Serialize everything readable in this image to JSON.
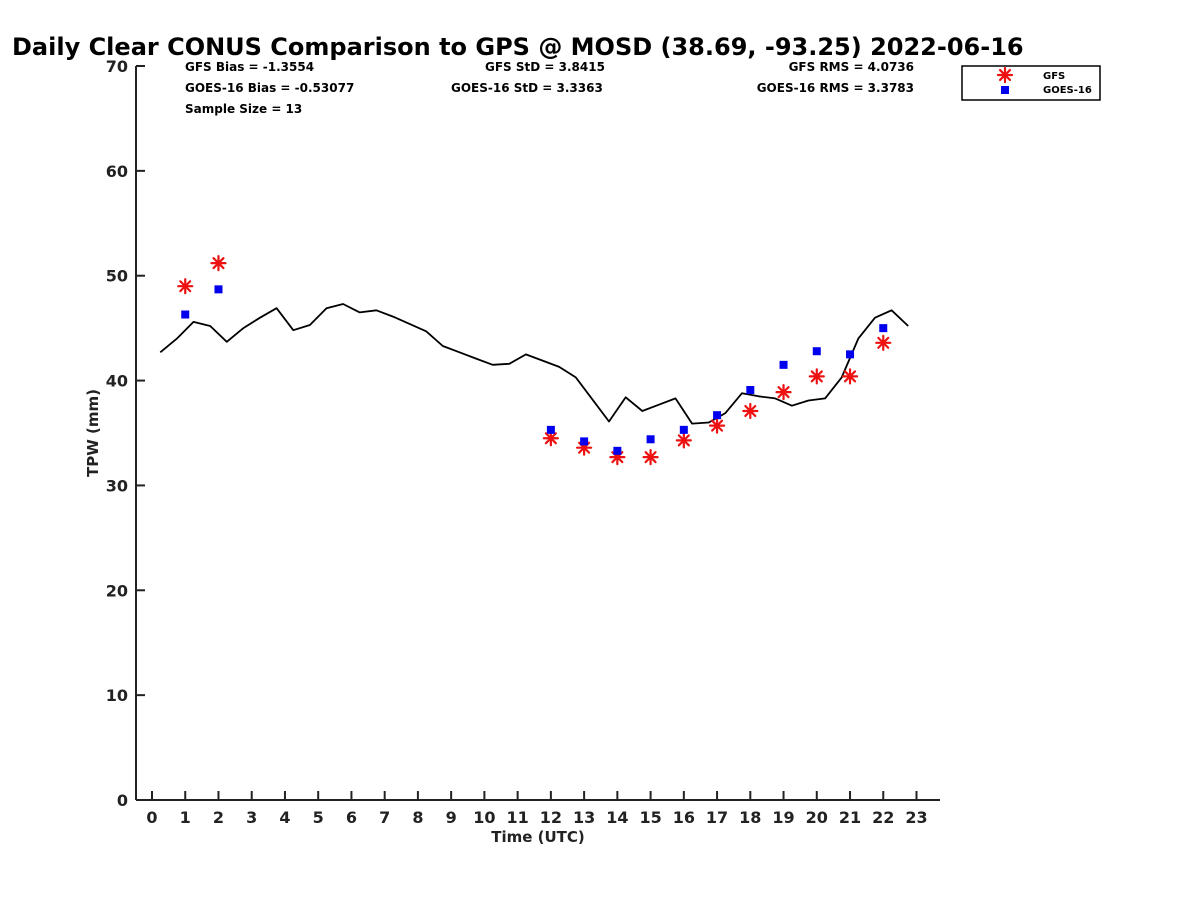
{
  "chart_data": {
    "type": "scatter",
    "title": "Daily Clear CONUS Comparison to GPS @ MOSD (38.69, -93.25) 2022-06-16",
    "xlabel": "Time (UTC)",
    "ylabel": "TPW (mm)",
    "xlim": [
      -0.5,
      23.8
    ],
    "ylim": [
      0,
      70
    ],
    "x_ticks": [
      0,
      1,
      2,
      3,
      4,
      5,
      6,
      7,
      8,
      9,
      10,
      11,
      12,
      13,
      14,
      15,
      16,
      17,
      18,
      19,
      20,
      21,
      22,
      23
    ],
    "y_ticks": [
      0,
      10,
      20,
      30,
      40,
      50,
      60,
      70
    ],
    "grid": false,
    "legend_position": "top-right",
    "stats": {
      "gfs_bias": "GFS Bias = -1.3554",
      "goes_bias": "GOES-16 Bias = -0.53077",
      "sample_size": "Sample Size = 13",
      "gfs_std": "GFS StD = 3.8415",
      "goes_std": "GOES-16 StD = 3.3363",
      "gfs_rms": "GFS RMS = 4.0736",
      "goes_rms": "GOES-16 RMS = 3.3783"
    },
    "series": [
      {
        "name": "GPS",
        "style": "line",
        "color": "#000000",
        "x": [
          0.25,
          0.75,
          1.25,
          1.75,
          2.25,
          2.75,
          3.25,
          3.75,
          4.25,
          4.75,
          5.25,
          5.75,
          6.25,
          6.75,
          7.25,
          7.75,
          8.25,
          8.75,
          9.25,
          9.75,
          10.25,
          10.75,
          11.25,
          11.75,
          12.25,
          12.75,
          13.25,
          13.75,
          14.25,
          14.75,
          15.25,
          15.75,
          16.25,
          16.75,
          17.25,
          17.75,
          18.25,
          18.75,
          19.25,
          19.75,
          20.25,
          20.75,
          21.25,
          21.75,
          22.25,
          22.75
        ],
        "y": [
          42.7,
          44.0,
          45.6,
          45.2,
          43.7,
          45.0,
          46.0,
          46.9,
          44.8,
          45.3,
          46.9,
          47.3,
          46.5,
          46.7,
          46.1,
          45.4,
          44.7,
          43.3,
          42.7,
          42.1,
          41.5,
          41.6,
          42.5,
          41.9,
          41.3,
          40.3,
          38.2,
          36.1,
          38.4,
          37.1,
          37.7,
          38.3,
          35.9,
          36.0,
          36.9,
          38.8,
          38.5,
          38.3,
          37.6,
          38.1,
          38.3,
          40.3,
          44.0,
          46.0,
          46.7,
          45.2
        ]
      },
      {
        "name": "GFS",
        "style": "asterisk",
        "color": "#ee1111",
        "x": [
          1,
          2,
          12,
          13,
          14,
          15,
          16,
          17,
          18,
          19,
          20,
          21,
          22
        ],
        "y": [
          49.0,
          51.2,
          34.5,
          33.6,
          32.7,
          32.7,
          34.3,
          35.7,
          37.1,
          38.9,
          40.4,
          40.4,
          43.6
        ]
      },
      {
        "name": "GOES-16",
        "style": "square",
        "color": "#0000ee",
        "x": [
          1,
          2,
          12,
          13,
          14,
          15,
          16,
          17,
          18,
          19,
          20,
          21,
          22
        ],
        "y": [
          46.3,
          48.7,
          35.3,
          34.2,
          33.3,
          34.4,
          35.3,
          36.7,
          39.1,
          41.5,
          42.8,
          42.5,
          45.0
        ]
      }
    ]
  }
}
